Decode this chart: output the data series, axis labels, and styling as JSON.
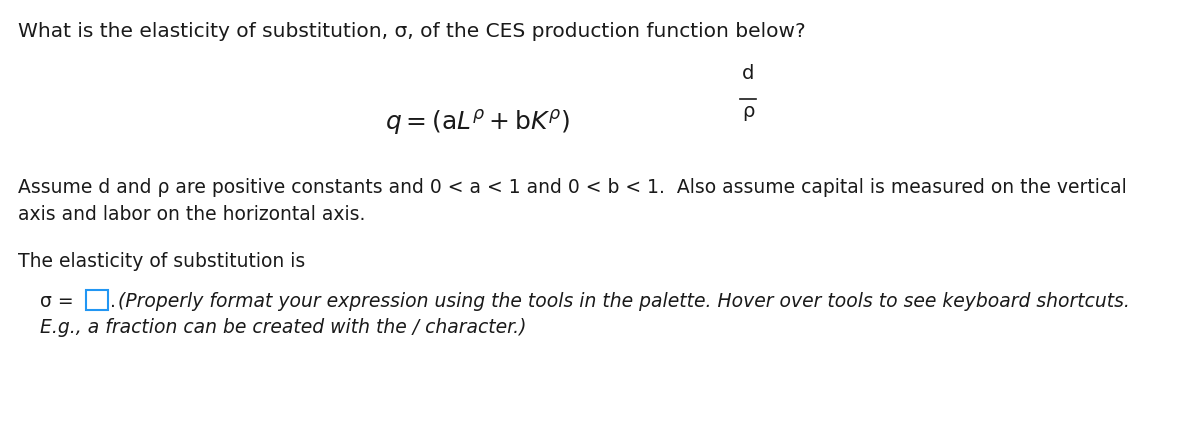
{
  "background_color": "#ffffff",
  "title_line": "What is the elasticity of substitution, σ, of the CES production function below?",
  "assumption_text": "Assume d and ρ are positive constants and 0 < a < 1 and 0 < b < 1.  Also assume capital is measured on the vertical\naxis and labor on the horizontal axis.",
  "elasticity_line": "The elasticity of substitution is",
  "italic_note_line1": "(Properly format your expression using the tools in the palette. Hover over tools to see keyboard shortcuts.",
  "italic_note_line2": "E.g., a fraction can be created with the / character.)",
  "font_size_title": 14.5,
  "font_size_body": 13.5,
  "font_size_eq": 18,
  "text_color": "#1a1a1a",
  "box_color": "#2196F3"
}
